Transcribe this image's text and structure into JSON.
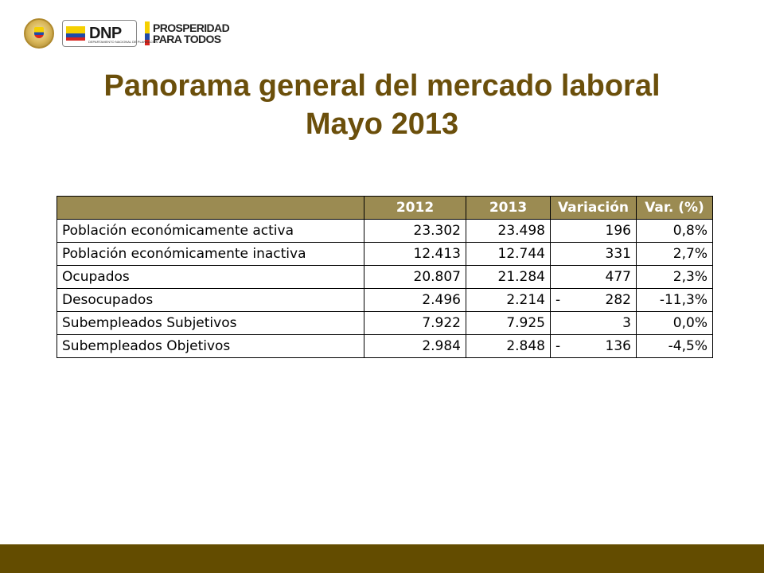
{
  "logos": {
    "dnp": "DNP",
    "dnp_sub": "DEPARTAMENTO NACIONAL DE PLANEACIÓN",
    "prosperidad_line1": "PROSPERIDAD",
    "prosperidad_line2": "PARA TODOS"
  },
  "title": {
    "line1": "Panorama general del mercado laboral",
    "line2": "Mayo 2013"
  },
  "table": {
    "headers": [
      "",
      "2012",
      "2013",
      "Variación",
      "Var. (%)"
    ],
    "rows": [
      {
        "label": "Población económicamente activa",
        "y2012": "23.302",
        "y2013": "23.498",
        "sign": "",
        "var": "196",
        "pct": "0,8%"
      },
      {
        "label": "Población económicamente inactiva",
        "y2012": "12.413",
        "y2013": "12.744",
        "sign": "",
        "var": "331",
        "pct": "2,7%"
      },
      {
        "label": "Ocupados",
        "y2012": "20.807",
        "y2013": "21.284",
        "sign": "",
        "var": "477",
        "pct": "2,3%"
      },
      {
        "label": "Desocupados",
        "y2012": "2.496",
        "y2013": "2.214",
        "sign": "-",
        "var": "282",
        "pct": "-11,3%"
      },
      {
        "label": "Subempleados Subjetivos",
        "y2012": "7.922",
        "y2013": "7.925",
        "sign": "",
        "var": "3",
        "pct": "0,0%"
      },
      {
        "label": "Subempleados Objetivos",
        "y2012": "2.984",
        "y2013": "2.848",
        "sign": "-",
        "var": "136",
        "pct": "-4,5%"
      }
    ]
  },
  "colors": {
    "title": "#6b4f0b",
    "header_fill": "#9b8b52",
    "footer_bar": "#634c00"
  }
}
